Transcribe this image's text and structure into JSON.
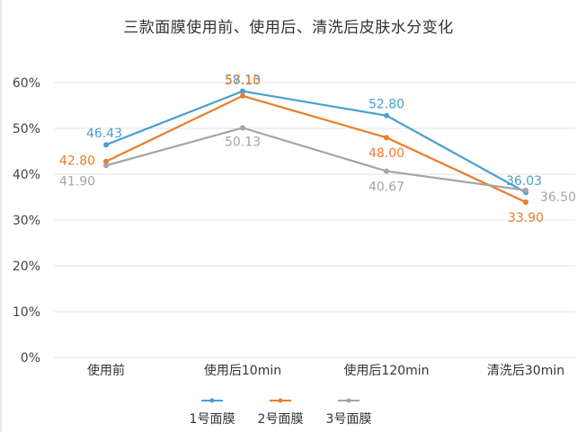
{
  "chart_data": {
    "type": "line",
    "title": "三款面膜使用前、使用后、清洗后皮肤水分变化",
    "xlabel": "",
    "ylabel": "",
    "categories": [
      "使用前",
      "使用后10min",
      "使用后120min",
      "清洗后30min"
    ],
    "yticks": [
      "0%",
      "10%",
      "20%",
      "30%",
      "40%",
      "50%",
      "60%"
    ],
    "ylim": [
      0,
      60
    ],
    "grid": true,
    "legend_position": "bottom",
    "series": [
      {
        "name": "1号面膜",
        "color": "#4a9fd0",
        "values": [
          46.43,
          58.13,
          52.8,
          36.03
        ],
        "labels": [
          "46.43",
          "58.13",
          "52.80",
          "36.03"
        ]
      },
      {
        "name": "2号面膜",
        "color": "#ec7d2c",
        "values": [
          42.8,
          57.1,
          48.0,
          33.9
        ],
        "labels": [
          "42.80",
          "57.10",
          "48.00",
          "33.90"
        ]
      },
      {
        "name": "3号面膜",
        "color": "#a5a5a5",
        "values": [
          41.9,
          50.13,
          40.67,
          36.5
        ],
        "labels": [
          "41.90",
          "50.13",
          "40.67",
          "36.50"
        ]
      }
    ]
  }
}
